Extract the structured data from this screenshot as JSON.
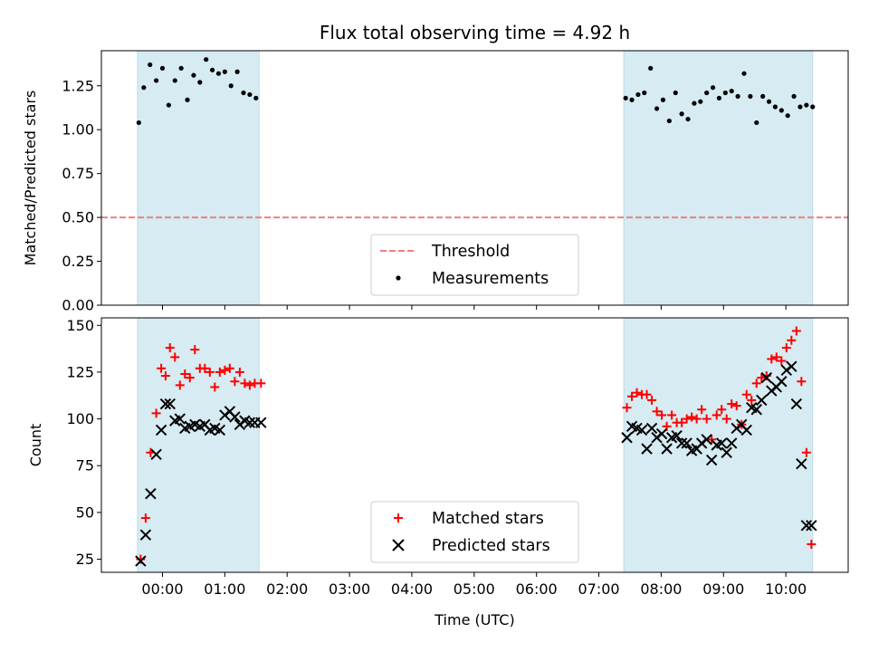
{
  "chart_data": [
    {
      "type": "scatter",
      "title": "Flux total observing time = 4.92 h",
      "xlabel": "",
      "ylabel": "Matched/Predicted stars",
      "x_unit": "hours UTC",
      "xlim": [
        -0.98,
        11.0
      ],
      "ylim": [
        0.0,
        1.45
      ],
      "yticks": [
        "0.00",
        "0.25",
        "0.50",
        "0.75",
        "1.00",
        "1.25"
      ],
      "observing_windows": [
        [
          -0.4,
          1.55
        ],
        [
          7.4,
          10.43
        ]
      ],
      "threshold": {
        "name": "Threshold",
        "value": 0.5,
        "color": "#f08080"
      },
      "legend": [
        "Threshold",
        "Measurements"
      ],
      "legend_location": "lower-center",
      "series": [
        {
          "name": "Measurements",
          "color": "#000000",
          "x": [
            -0.38,
            -0.3,
            -0.2,
            -0.1,
            0.0,
            0.1,
            0.2,
            0.3,
            0.4,
            0.5,
            0.6,
            0.7,
            0.8,
            0.9,
            1.0,
            1.1,
            1.2,
            1.3,
            1.4,
            1.5,
            7.43,
            7.53,
            7.63,
            7.73,
            7.83,
            7.93,
            8.03,
            8.13,
            8.23,
            8.33,
            8.43,
            8.53,
            8.63,
            8.73,
            8.83,
            8.93,
            9.03,
            9.13,
            9.23,
            9.33,
            9.43,
            9.53,
            9.63,
            9.73,
            9.83,
            9.93,
            10.03,
            10.13,
            10.23,
            10.33,
            10.43
          ],
          "y": [
            1.04,
            1.24,
            1.37,
            1.28,
            1.35,
            1.14,
            1.28,
            1.35,
            1.17,
            1.31,
            1.27,
            1.4,
            1.34,
            1.32,
            1.33,
            1.25,
            1.33,
            1.21,
            1.2,
            1.18,
            1.18,
            1.17,
            1.2,
            1.21,
            1.35,
            1.12,
            1.17,
            1.05,
            1.21,
            1.09,
            1.06,
            1.15,
            1.16,
            1.21,
            1.24,
            1.18,
            1.21,
            1.22,
            1.19,
            1.32,
            1.19,
            1.04,
            1.19,
            1.16,
            1.13,
            1.11,
            1.08,
            1.19,
            1.13,
            1.14,
            1.13
          ]
        }
      ]
    },
    {
      "type": "scatter",
      "title": "",
      "xlabel": "Time (UTC)",
      "ylabel": "Count",
      "x_unit": "hours UTC",
      "xlim": [
        -0.98,
        11.0
      ],
      "ylim": [
        18,
        154
      ],
      "yticks": [
        "25",
        "50",
        "75",
        "100",
        "125",
        "150"
      ],
      "xticks": [
        "00:00",
        "01:00",
        "02:00",
        "03:00",
        "04:00",
        "05:00",
        "06:00",
        "07:00",
        "08:00",
        "09:00",
        "10:00"
      ],
      "observing_windows": [
        [
          -0.4,
          1.55
        ],
        [
          7.4,
          10.43
        ]
      ],
      "legend": [
        "Matched stars",
        "Predicted stars"
      ],
      "legend_location": "lower-center",
      "series": [
        {
          "name": "Matched stars",
          "marker": "plus",
          "color": "#ff0000",
          "x": [
            -0.35,
            -0.27,
            -0.19,
            -0.1,
            -0.02,
            0.05,
            0.12,
            0.2,
            0.28,
            0.36,
            0.44,
            0.52,
            0.6,
            0.68,
            0.76,
            0.84,
            0.92,
            1.0,
            1.08,
            1.16,
            1.24,
            1.32,
            1.4,
            1.48,
            1.58,
            7.45,
            7.53,
            7.61,
            7.69,
            7.77,
            7.85,
            7.93,
            8.01,
            8.09,
            8.17,
            8.25,
            8.33,
            8.41,
            8.49,
            8.57,
            8.65,
            8.73,
            8.81,
            8.89,
            8.97,
            9.05,
            9.13,
            9.21,
            9.29,
            9.37,
            9.45,
            9.53,
            9.61,
            9.69,
            9.77,
            9.85,
            9.93,
            10.01,
            10.09,
            10.17,
            10.25,
            10.33,
            10.41
          ],
          "y": [
            25,
            47,
            82,
            103,
            127,
            123,
            138,
            133,
            118,
            124,
            122,
            137,
            127,
            127,
            125,
            117,
            125,
            126,
            127,
            120,
            125,
            119,
            118,
            119,
            119,
            106,
            112,
            114,
            113,
            113,
            110,
            104,
            102,
            96,
            102,
            98,
            98,
            100,
            101,
            100,
            105,
            100,
            89,
            102,
            105,
            100,
            108,
            107,
            97,
            113,
            110,
            119,
            122,
            123,
            132,
            133,
            131,
            138,
            142,
            147,
            120,
            82,
            33
          ]
        },
        {
          "name": "Predicted stars",
          "marker": "x",
          "color": "#000000",
          "x": [
            -0.35,
            -0.27,
            -0.19,
            -0.1,
            -0.02,
            0.05,
            0.12,
            0.2,
            0.28,
            0.36,
            0.44,
            0.52,
            0.6,
            0.68,
            0.76,
            0.84,
            0.92,
            1.0,
            1.08,
            1.16,
            1.24,
            1.32,
            1.4,
            1.48,
            1.58,
            7.45,
            7.53,
            7.61,
            7.69,
            7.77,
            7.85,
            7.93,
            8.01,
            8.09,
            8.17,
            8.25,
            8.33,
            8.41,
            8.49,
            8.57,
            8.65,
            8.73,
            8.81,
            8.89,
            8.97,
            9.05,
            9.13,
            9.21,
            9.29,
            9.37,
            9.45,
            9.53,
            9.61,
            9.69,
            9.77,
            9.85,
            9.93,
            10.01,
            10.09,
            10.17,
            10.25,
            10.33,
            10.41
          ],
          "y": [
            24,
            38,
            60,
            81,
            94,
            108,
            108,
            99,
            100,
            95,
            96,
            97,
            96,
            97,
            94,
            95,
            94,
            102,
            104,
            101,
            97,
            99,
            98,
            98,
            98,
            90,
            96,
            95,
            94,
            84,
            95,
            90,
            92,
            84,
            90,
            91,
            87,
            87,
            83,
            84,
            87,
            89,
            78,
            86,
            87,
            82,
            87,
            95,
            97,
            94,
            106,
            105,
            110,
            122,
            115,
            117,
            120,
            126,
            128,
            108,
            76,
            43,
            43
          ]
        }
      ]
    }
  ]
}
